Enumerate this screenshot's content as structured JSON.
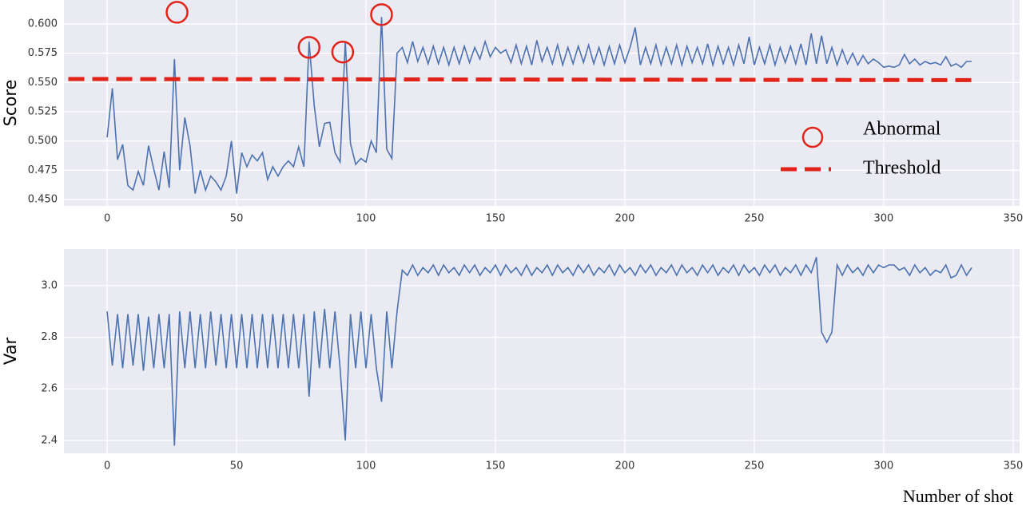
{
  "chart_data": [
    {
      "type": "line",
      "ylabel": "Score",
      "color": "#4c72b0",
      "xlim": [
        -16.7,
        352.5
      ],
      "ylim": [
        0.4445,
        0.6205
      ],
      "xticks": [
        0,
        50,
        100,
        150,
        200,
        250,
        300,
        350
      ],
      "yticks": [
        {
          "value": 0.45,
          "label": "0.450"
        },
        {
          "value": 0.475,
          "label": "0.475"
        },
        {
          "value": 0.5,
          "label": "0.500"
        },
        {
          "value": 0.525,
          "label": "0.525"
        },
        {
          "value": 0.55,
          "label": "0.550"
        },
        {
          "value": 0.575,
          "label": "0.575"
        },
        {
          "value": 0.6,
          "label": "0.600"
        }
      ],
      "grid": true,
      "x": [
        0,
        2,
        4,
        6,
        8,
        10,
        12,
        14,
        16,
        18,
        20,
        22,
        24,
        26,
        28,
        30,
        32,
        34,
        36,
        38,
        40,
        42,
        44,
        46,
        48,
        50,
        52,
        54,
        56,
        58,
        60,
        62,
        64,
        66,
        68,
        70,
        72,
        74,
        76,
        78,
        80,
        82,
        84,
        86,
        88,
        90,
        92,
        94,
        96,
        98,
        100,
        102,
        104,
        106,
        108,
        110,
        112,
        114,
        116,
        118,
        120,
        122,
        124,
        126,
        128,
        130,
        132,
        134,
        136,
        138,
        140,
        142,
        144,
        146,
        148,
        150,
        152,
        154,
        156,
        158,
        160,
        162,
        164,
        166,
        168,
        170,
        172,
        174,
        176,
        178,
        180,
        182,
        184,
        186,
        188,
        190,
        192,
        194,
        196,
        198,
        200,
        202,
        204,
        206,
        208,
        210,
        212,
        214,
        216,
        218,
        220,
        222,
        224,
        226,
        228,
        230,
        232,
        234,
        236,
        238,
        240,
        242,
        244,
        246,
        248,
        250,
        252,
        254,
        256,
        258,
        260,
        262,
        264,
        266,
        268,
        270,
        272,
        274,
        276,
        278,
        280,
        282,
        284,
        286,
        288,
        290,
        292,
        294,
        296,
        298,
        300,
        302,
        304,
        306,
        308,
        310,
        312,
        314,
        316,
        318,
        320,
        322,
        324,
        326,
        328,
        330,
        332,
        334
      ],
      "values": [
        0.503,
        0.545,
        0.484,
        0.497,
        0.462,
        0.458,
        0.474,
        0.462,
        0.496,
        0.476,
        0.458,
        0.491,
        0.46,
        0.57,
        0.475,
        0.52,
        0.496,
        0.455,
        0.475,
        0.458,
        0.47,
        0.465,
        0.458,
        0.47,
        0.5,
        0.455,
        0.49,
        0.478,
        0.488,
        0.483,
        0.49,
        0.467,
        0.478,
        0.47,
        0.478,
        0.483,
        0.478,
        0.495,
        0.478,
        0.585,
        0.53,
        0.495,
        0.515,
        0.516,
        0.49,
        0.482,
        0.585,
        0.498,
        0.48,
        0.485,
        0.482,
        0.5,
        0.49,
        0.606,
        0.493,
        0.485,
        0.575,
        0.58,
        0.567,
        0.585,
        0.568,
        0.58,
        0.566,
        0.581,
        0.566,
        0.58,
        0.565,
        0.58,
        0.566,
        0.581,
        0.567,
        0.58,
        0.57,
        0.585,
        0.572,
        0.58,
        0.575,
        0.578,
        0.567,
        0.582,
        0.566,
        0.581,
        0.565,
        0.586,
        0.568,
        0.58,
        0.566,
        0.582,
        0.565,
        0.58,
        0.566,
        0.581,
        0.567,
        0.582,
        0.566,
        0.58,
        0.565,
        0.581,
        0.566,
        0.582,
        0.567,
        0.58,
        0.597,
        0.565,
        0.58,
        0.566,
        0.582,
        0.565,
        0.58,
        0.566,
        0.582,
        0.565,
        0.581,
        0.567,
        0.58,
        0.566,
        0.583,
        0.565,
        0.581,
        0.566,
        0.58,
        0.565,
        0.582,
        0.566,
        0.589,
        0.565,
        0.58,
        0.566,
        0.582,
        0.565,
        0.58,
        0.567,
        0.581,
        0.566,
        0.583,
        0.565,
        0.592,
        0.566,
        0.59,
        0.566,
        0.58,
        0.565,
        0.578,
        0.566,
        0.575,
        0.565,
        0.573,
        0.566,
        0.57,
        0.567,
        0.563,
        0.564,
        0.563,
        0.565,
        0.574,
        0.566,
        0.57,
        0.565,
        0.568,
        0.566,
        0.567,
        0.565,
        0.572,
        0.564,
        0.566,
        0.563,
        0.568,
        0.568
      ],
      "abnormal": {
        "label": "Abnormal",
        "color": "#e2231a",
        "x": [
          27,
          78,
          91,
          106
        ],
        "y": [
          0.61,
          0.58,
          0.576,
          0.608
        ]
      },
      "threshold": {
        "label": "Threshold",
        "color": "#e2231a",
        "x": [
          -15,
          336
        ],
        "values": [
          0.553,
          0.552
        ]
      }
    },
    {
      "type": "line",
      "ylabel": "Var",
      "xlabel": "Number of shot",
      "color": "#4c72b0",
      "xlim": [
        -16.7,
        352.5
      ],
      "ylim": [
        2.35,
        3.142
      ],
      "xticks": [
        0,
        50,
        100,
        150,
        200,
        250,
        300,
        350
      ],
      "yticks": [
        2.4,
        2.6,
        2.8,
        {
          "value": 3,
          "label": "3.0"
        }
      ],
      "grid": true,
      "x": [
        0,
        2,
        4,
        6,
        8,
        10,
        12,
        14,
        16,
        18,
        20,
        22,
        24,
        26,
        28,
        30,
        32,
        34,
        36,
        38,
        40,
        42,
        44,
        46,
        48,
        50,
        52,
        54,
        56,
        58,
        60,
        62,
        64,
        66,
        68,
        70,
        72,
        74,
        76,
        78,
        80,
        82,
        84,
        86,
        88,
        90,
        92,
        94,
        96,
        98,
        100,
        102,
        104,
        106,
        108,
        110,
        112,
        114,
        116,
        118,
        120,
        122,
        124,
        126,
        128,
        130,
        132,
        134,
        136,
        138,
        140,
        142,
        144,
        146,
        148,
        150,
        152,
        154,
        156,
        158,
        160,
        162,
        164,
        166,
        168,
        170,
        172,
        174,
        176,
        178,
        180,
        182,
        184,
        186,
        188,
        190,
        192,
        194,
        196,
        198,
        200,
        202,
        204,
        206,
        208,
        210,
        212,
        214,
        216,
        218,
        220,
        222,
        224,
        226,
        228,
        230,
        232,
        234,
        236,
        238,
        240,
        242,
        244,
        246,
        248,
        250,
        252,
        254,
        256,
        258,
        260,
        262,
        264,
        266,
        268,
        270,
        272,
        274,
        276,
        278,
        280,
        282,
        284,
        286,
        288,
        290,
        292,
        294,
        296,
        298,
        300,
        302,
        304,
        306,
        308,
        310,
        312,
        314,
        316,
        318,
        320,
        322,
        324,
        326,
        328,
        330,
        332,
        334
      ],
      "values": [
        2.9,
        2.69,
        2.89,
        2.68,
        2.89,
        2.69,
        2.89,
        2.67,
        2.88,
        2.68,
        2.89,
        2.68,
        2.89,
        2.38,
        2.9,
        2.68,
        2.9,
        2.68,
        2.89,
        2.68,
        2.9,
        2.69,
        2.89,
        2.68,
        2.89,
        2.68,
        2.89,
        2.68,
        2.89,
        2.68,
        2.89,
        2.68,
        2.89,
        2.68,
        2.89,
        2.68,
        2.89,
        2.68,
        2.89,
        2.57,
        2.9,
        2.68,
        2.91,
        2.68,
        2.9,
        2.68,
        2.4,
        2.89,
        2.68,
        2.9,
        2.68,
        2.89,
        2.68,
        2.55,
        2.9,
        2.68,
        2.9,
        3.06,
        3.04,
        3.08,
        3.04,
        3.07,
        3.05,
        3.08,
        3.04,
        3.08,
        3.05,
        3.07,
        3.04,
        3.08,
        3.05,
        3.08,
        3.04,
        3.07,
        3.05,
        3.08,
        3.04,
        3.08,
        3.05,
        3.07,
        3.04,
        3.08,
        3.04,
        3.07,
        3.05,
        3.08,
        3.04,
        3.08,
        3.05,
        3.07,
        3.04,
        3.08,
        3.05,
        3.08,
        3.04,
        3.07,
        3.05,
        3.08,
        3.04,
        3.08,
        3.05,
        3.07,
        3.04,
        3.08,
        3.05,
        3.08,
        3.04,
        3.07,
        3.05,
        3.08,
        3.04,
        3.08,
        3.05,
        3.07,
        3.04,
        3.08,
        3.05,
        3.08,
        3.04,
        3.07,
        3.05,
        3.08,
        3.04,
        3.08,
        3.05,
        3.07,
        3.04,
        3.08,
        3.05,
        3.08,
        3.04,
        3.07,
        3.05,
        3.08,
        3.04,
        3.08,
        3.05,
        3.11,
        2.82,
        2.78,
        2.82,
        3.08,
        3.04,
        3.08,
        3.05,
        3.07,
        3.04,
        3.08,
        3.05,
        3.08,
        3.07,
        3.08,
        3.08,
        3.06,
        3.07,
        3.04,
        3.08,
        3.05,
        3.07,
        3.04,
        3.06,
        3.05,
        3.08,
        3.03,
        3.04,
        3.08,
        3.04,
        3.07
      ]
    }
  ]
}
